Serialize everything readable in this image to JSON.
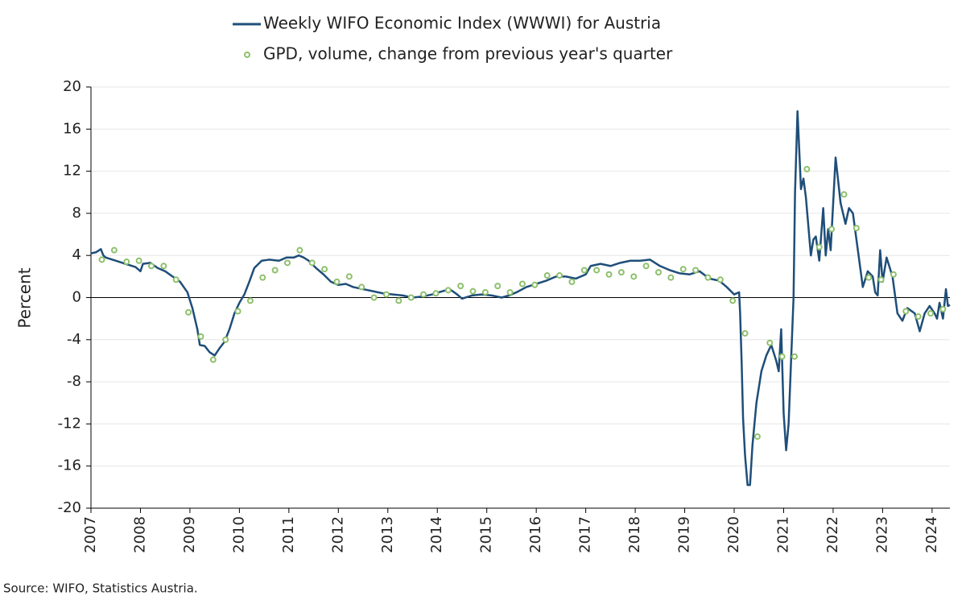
{
  "chart_data": {
    "type": "line",
    "ylabel": "Percent",
    "source": "Source: WIFO, Statistics Austria.",
    "xlim": [
      2007,
      2024.36
    ],
    "xticks": [
      2007,
      2008,
      2009,
      2010,
      2011,
      2012,
      2013,
      2014,
      2015,
      2016,
      2017,
      2018,
      2019,
      2020,
      2021,
      2022,
      2023,
      2024
    ],
    "ylim": [
      -20,
      20
    ],
    "yticks": [
      20,
      16,
      12,
      8,
      4,
      0,
      -4,
      -8,
      -12,
      -16,
      -20
    ],
    "grid": true,
    "legend": "top",
    "series": [
      {
        "name": "Weekly WIFO Economic Index (WWWI) for Austria",
        "type": "line",
        "color": "#1f4e79",
        "x": [
          2007.0,
          2007.1,
          2007.2,
          2007.25,
          2007.3,
          2007.5,
          2007.7,
          2007.9,
          2008.0,
          2008.05,
          2008.2,
          2008.35,
          2008.5,
          2008.65,
          2008.8,
          2008.95,
          2009.05,
          2009.15,
          2009.2,
          2009.3,
          2009.4,
          2009.5,
          2009.6,
          2009.7,
          2009.8,
          2009.9,
          2010.0,
          2010.1,
          2010.2,
          2010.3,
          2010.45,
          2010.6,
          2010.8,
          2010.95,
          2011.1,
          2011.2,
          2011.3,
          2011.4,
          2011.55,
          2011.7,
          2011.85,
          2012.0,
          2012.15,
          2012.3,
          2012.5,
          2012.7,
          2012.9,
          2013.1,
          2013.3,
          2013.5,
          2013.7,
          2013.9,
          2014.1,
          2014.25,
          2014.4,
          2014.5,
          2014.7,
          2014.9,
          2015.1,
          2015.3,
          2015.45,
          2015.6,
          2015.8,
          2016.0,
          2016.2,
          2016.4,
          2016.6,
          2016.8,
          2017.0,
          2017.1,
          2017.3,
          2017.5,
          2017.7,
          2017.9,
          2018.1,
          2018.3,
          2018.5,
          2018.7,
          2018.9,
          2019.1,
          2019.3,
          2019.5,
          2019.7,
          2019.85,
          2020.0,
          2020.1,
          2020.12,
          2020.15,
          2020.18,
          2020.22,
          2020.27,
          2020.32,
          2020.37,
          2020.45,
          2020.55,
          2020.65,
          2020.75,
          2020.85,
          2020.9,
          2020.95,
          2021.0,
          2021.05,
          2021.1,
          2021.15,
          2021.2,
          2021.23,
          2021.28,
          2021.32,
          2021.35,
          2021.4,
          2021.45,
          2021.55,
          2021.6,
          2021.65,
          2021.72,
          2021.8,
          2021.85,
          2021.9,
          2021.95,
          2022.05,
          2022.15,
          2022.25,
          2022.32,
          2022.4,
          2022.5,
          2022.6,
          2022.7,
          2022.8,
          2022.85,
          2022.9,
          2022.95,
          2023.0,
          2023.08,
          2023.2,
          2023.3,
          2023.4,
          2023.5,
          2023.65,
          2023.75,
          2023.85,
          2023.95,
          2024.05,
          2024.1,
          2024.15,
          2024.22,
          2024.28,
          2024.32,
          2024.36
        ],
        "values": [
          4.2,
          4.3,
          4.6,
          4.0,
          3.8,
          3.5,
          3.2,
          2.9,
          2.5,
          3.2,
          3.3,
          2.8,
          2.5,
          2.0,
          1.5,
          0.5,
          -1.0,
          -3.0,
          -4.5,
          -4.6,
          -5.2,
          -5.5,
          -4.8,
          -4.2,
          -3.0,
          -1.5,
          -0.5,
          0.3,
          1.5,
          2.8,
          3.5,
          3.6,
          3.5,
          3.8,
          3.8,
          4.0,
          3.8,
          3.5,
          2.8,
          2.2,
          1.5,
          1.2,
          1.3,
          1.0,
          0.8,
          0.6,
          0.4,
          0.3,
          0.2,
          0.0,
          0.1,
          0.3,
          0.6,
          0.8,
          0.3,
          -0.1,
          0.2,
          0.3,
          0.2,
          0.0,
          0.2,
          0.5,
          1.0,
          1.3,
          1.6,
          2.0,
          2.0,
          1.8,
          2.2,
          3.0,
          3.2,
          3.0,
          3.3,
          3.5,
          3.5,
          3.6,
          3.0,
          2.6,
          2.3,
          2.2,
          2.5,
          1.8,
          1.6,
          1.0,
          0.3,
          0.5,
          -1.5,
          -6,
          -11.5,
          -15,
          -17.8,
          -17.8,
          -14,
          -10,
          -7,
          -5.5,
          -4.5,
          -6,
          -7,
          -3,
          -11,
          -14.5,
          -12,
          -6,
          0,
          10,
          17.7,
          13.5,
          10.3,
          11.3,
          9.5,
          4.0,
          5.5,
          5.8,
          3.5,
          8.5,
          4.0,
          6.5,
          4.5,
          13.3,
          9.0,
          7.0,
          8.5,
          8.0,
          4.5,
          1.0,
          2.5,
          2.0,
          0.5,
          0.2,
          4.5,
          1.5,
          3.8,
          2.0,
          -1.5,
          -2.2,
          -1.0,
          -1.5,
          -3.2,
          -1.5,
          -0.8,
          -1.5,
          -2.0,
          -0.5,
          -2.0,
          0.8,
          -0.8,
          -0.7
        ]
      },
      {
        "name": "GPD, volume, change from previous year's quarter",
        "type": "scatter",
        "color": "#8dc06b",
        "x": [
          2007.22,
          2007.47,
          2007.72,
          2007.97,
          2008.22,
          2008.47,
          2008.72,
          2008.97,
          2009.22,
          2009.47,
          2009.72,
          2009.97,
          2010.22,
          2010.47,
          2010.72,
          2010.97,
          2011.22,
          2011.47,
          2011.72,
          2011.97,
          2012.22,
          2012.47,
          2012.72,
          2012.97,
          2013.22,
          2013.47,
          2013.72,
          2013.97,
          2014.22,
          2014.47,
          2014.72,
          2014.97,
          2015.22,
          2015.47,
          2015.72,
          2015.97,
          2016.22,
          2016.47,
          2016.72,
          2016.97,
          2017.22,
          2017.47,
          2017.72,
          2017.97,
          2018.22,
          2018.47,
          2018.72,
          2018.97,
          2019.22,
          2019.47,
          2019.72,
          2019.97,
          2020.22,
          2020.47,
          2020.72,
          2020.97,
          2021.22,
          2021.47,
          2021.72,
          2021.97,
          2022.22,
          2022.47,
          2022.72,
          2022.97,
          2023.22,
          2023.47,
          2023.72,
          2023.97,
          2024.22
        ],
        "values": [
          3.6,
          4.5,
          3.4,
          3.5,
          3.0,
          3.0,
          1.7,
          -1.4,
          -3.7,
          -5.9,
          -4.0,
          -1.3,
          -0.3,
          1.9,
          2.6,
          3.3,
          4.5,
          3.3,
          2.7,
          1.5,
          2.0,
          1.0,
          0.0,
          0.3,
          -0.3,
          0.0,
          0.3,
          0.4,
          0.7,
          1.1,
          0.6,
          0.5,
          1.1,
          0.5,
          1.3,
          1.2,
          2.1,
          2.1,
          1.5,
          2.6,
          2.6,
          2.2,
          2.4,
          2.0,
          3.0,
          2.4,
          1.9,
          2.7,
          2.6,
          1.9,
          1.7,
          -0.3,
          -3.4,
          -13.2,
          -4.3,
          -5.6,
          -5.6,
          12.2,
          4.8,
          6.5,
          9.8,
          6.6,
          1.9,
          1.7,
          2.2,
          -1.3,
          -1.8,
          -1.5,
          -1.1
        ]
      }
    ]
  }
}
